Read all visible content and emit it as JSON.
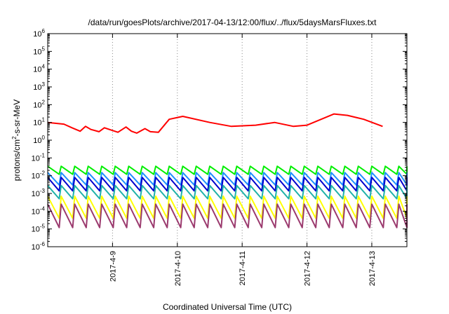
{
  "chart_data": {
    "type": "line",
    "title": "/data/run/goesPlots/archive/2017-04-13/12:00/flux/../flux/5daysMarsFluxes.txt",
    "xlabel": "Coordinated Universal Time (UTC)",
    "ylabel": {
      "prefix": "protons/cm",
      "superscript": "2",
      "suffix": "-s-sr-MeV"
    },
    "yscale": "log",
    "ylim": [
      1e-06,
      1000000.0
    ],
    "y_ticks": [
      {
        "base": "10",
        "exp": "-6"
      },
      {
        "base": "10",
        "exp": "-5"
      },
      {
        "base": "10",
        "exp": "-4"
      },
      {
        "base": "10",
        "exp": "-3"
      },
      {
        "base": "10",
        "exp": "-2"
      },
      {
        "base": "10",
        "exp": "-1"
      },
      {
        "base": "10",
        "exp": "0"
      },
      {
        "base": "10",
        "exp": "1"
      },
      {
        "base": "10",
        "exp": "2"
      },
      {
        "base": "10",
        "exp": "3"
      },
      {
        "base": "10",
        "exp": "4"
      },
      {
        "base": "10",
        "exp": "5"
      },
      {
        "base": "10",
        "exp": "6"
      }
    ],
    "xlim": [
      "2017-04-08 00:00",
      "2017-04-13 13:00"
    ],
    "x_ticks": [
      "2017-4-9",
      "2017-4-10",
      "2017-4-11",
      "2017-4-12",
      "2017-4-13"
    ],
    "grid": "vertical-dotted",
    "series": [
      {
        "color": "#ff0000",
        "hours": [
          0,
          6,
          9,
          12,
          14,
          16,
          19,
          21,
          24,
          26,
          29,
          31,
          33,
          36,
          38,
          41,
          45,
          50,
          60,
          68,
          77,
          84,
          91,
          96,
          106,
          111,
          117,
          124
        ],
        "values": [
          10,
          8,
          5,
          3.2,
          6,
          4,
          3,
          5,
          3.5,
          2.8,
          5.5,
          3.2,
          2.5,
          4.5,
          3,
          2.8,
          15,
          22,
          10,
          6,
          7,
          10,
          6,
          7,
          30,
          25,
          15,
          6
        ]
      },
      {
        "color": "#00ee00",
        "period": 5,
        "low": 0.012,
        "high": 0.034
      },
      {
        "color": "#1e90ff",
        "period": 5,
        "low": 0.003,
        "high": 0.015
      },
      {
        "color": "#0000cd",
        "period": 5,
        "low": 0.0014,
        "high": 0.008
      },
      {
        "color": "#20b2aa",
        "period": 5,
        "low": 0.0005,
        "high": 0.0028
      },
      {
        "color": "#ffff00",
        "period": 5,
        "low": 4e-05,
        "high": 0.0007
      },
      {
        "color": "#9b3a6e",
        "period": 5,
        "low": 1.2e-05,
        "high": 0.00025
      }
    ]
  }
}
